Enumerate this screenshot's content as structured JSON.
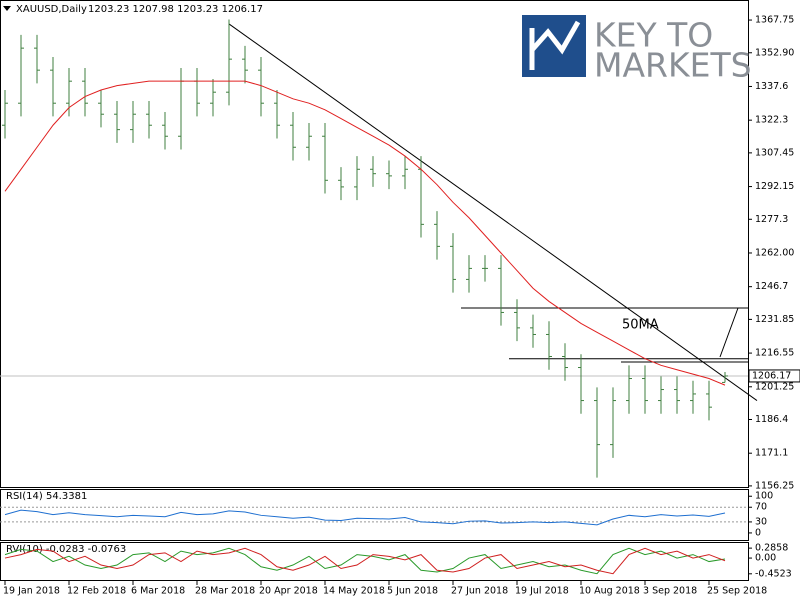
{
  "chart_data": {
    "type": "ohlc",
    "title": "XAUUSD,Daily",
    "header_values": "1203.23 1207.98 1203.23 1206.17",
    "logo_line1": "KEY TO",
    "logo_line2": "MARKETS",
    "annotation": "50MA",
    "color": "#3f7f3f",
    "categories": [
      "19 Jan 2018",
      null,
      null,
      null,
      "12 Feb 2018",
      null,
      null,
      null,
      "6 Mar 2018",
      null,
      null,
      null,
      "28 Mar 2018",
      null,
      null,
      null,
      "20 Apr 2018",
      null,
      null,
      null,
      "14 May 2018",
      null,
      null,
      null,
      "5 Jun 2018",
      null,
      null,
      null,
      "27 Jun 2018",
      null,
      null,
      null,
      "19 Jul 2018",
      null,
      null,
      null,
      "10 Aug 2018",
      null,
      null,
      null,
      "3 Sep 2018",
      null,
      null,
      null,
      "25 Sep 2018",
      null
    ],
    "open": [
      1320,
      1330,
      1355,
      1345,
      1330,
      1340,
      1330,
      1325,
      1318,
      1325,
      1320,
      1315,
      1340,
      1330,
      1335,
      1350,
      1345,
      1330,
      1320,
      1310,
      1315,
      1295,
      1292,
      1300,
      1298,
      1297,
      1300,
      1275,
      1265,
      1250,
      1255,
      1255,
      1235,
      1228,
      1225,
      1215,
      1210,
      1195,
      1175,
      1195,
      1205,
      1195,
      1200,
      1195,
      1198,
      1203.23
    ],
    "high": [
      1336,
      1361,
      1361,
      1351,
      1346,
      1346,
      1336,
      1331,
      1331,
      1331,
      1326,
      1346,
      1346,
      1341,
      1368,
      1356,
      1351,
      1336,
      1326,
      1321,
      1321,
      1301,
      1306,
      1306,
      1304,
      1306,
      1306,
      1281,
      1271,
      1261,
      1261,
      1261,
      1241,
      1234,
      1231,
      1221,
      1216,
      1201,
      1201,
      1211,
      1211,
      1206,
      1206,
      1204,
      1204,
      1207.98
    ],
    "low": [
      1314,
      1324,
      1339,
      1324,
      1324,
      1324,
      1319,
      1312,
      1312,
      1314,
      1309,
      1309,
      1324,
      1324,
      1329,
      1339,
      1324,
      1314,
      1304,
      1304,
      1289,
      1286,
      1286,
      1292,
      1291,
      1291,
      1269,
      1259,
      1244,
      1244,
      1249,
      1229,
      1222,
      1219,
      1209,
      1204,
      1189,
      1160,
      1169,
      1189,
      1189,
      1189,
      1189,
      1189,
      1186,
      1203.23
    ],
    "close": [
      1330,
      1355,
      1345,
      1330,
      1340,
      1330,
      1325,
      1318,
      1325,
      1320,
      1315,
      1340,
      1330,
      1335,
      1350,
      1345,
      1330,
      1320,
      1310,
      1315,
      1295,
      1292,
      1300,
      1298,
      1297,
      1300,
      1275,
      1265,
      1250,
      1255,
      1255,
      1235,
      1228,
      1225,
      1215,
      1210,
      1195,
      1175,
      1195,
      1205,
      1195,
      1200,
      1195,
      1198,
      1192,
      1206.17
    ],
    "ma": {
      "color": "#e02020",
      "values": [
        1290,
        1300,
        1310,
        1320,
        1328,
        1333,
        1336,
        1338,
        1339,
        1340,
        1340,
        1340,
        1340,
        1340,
        1340,
        1340,
        1338,
        1335,
        1332,
        1330,
        1327,
        1323,
        1319,
        1315,
        1311,
        1306,
        1300,
        1293,
        1285,
        1278,
        1270,
        1262,
        1254,
        1246,
        1240,
        1235,
        1230,
        1226,
        1222,
        1218,
        1214,
        1211,
        1209,
        1207,
        1205,
        1202
      ]
    },
    "last_price": 1206.17,
    "levels": [
      {
        "price": 1237,
        "from": 28.5
      },
      {
        "price": 1214,
        "from": 31.5
      },
      {
        "price": 1212.5,
        "from": 38.5
      }
    ],
    "trendline": {
      "from": [
        14,
        1366
      ],
      "to": [
        47,
        1195
      ]
    },
    "ylim": [
      1155.3,
      1376.4
    ],
    "yticks": [
      {
        "value": 1367.75,
        "label": "1367.75"
      },
      {
        "value": 1352.9,
        "label": "1352.90"
      },
      1337.6,
      1322.3,
      1307.45,
      1292.15,
      1277.3,
      {
        "value": 1262,
        "label": "1262.00"
      },
      1246.7,
      1231.85,
      1216.55,
      1201.25,
      1186.4,
      1171.1,
      1156.25
    ],
    "rsi": {
      "title": "RSI(14) 54.3381",
      "color": "#1e6fd0",
      "values": [
        50,
        62,
        58,
        50,
        55,
        50,
        47,
        44,
        48,
        46,
        44,
        56,
        50,
        52,
        60,
        57,
        48,
        44,
        40,
        43,
        35,
        34,
        40,
        39,
        38,
        42,
        30,
        28,
        25,
        32,
        33,
        27,
        28,
        30,
        28,
        30,
        26,
        22,
        38,
        48,
        44,
        50,
        46,
        49,
        45,
        54.34
      ],
      "ylim": [
        -22,
        117
      ],
      "yticks": [
        100,
        70,
        30,
        0
      ],
      "levels": [
        70,
        30
      ]
    },
    "rvi": {
      "title": "RVI(10) -0.0283 -0.0763",
      "series": [
        {
          "color": "#2a9a2a",
          "values": [
            0.1,
            0.25,
            0.2,
            -0.1,
            0.05,
            -0.2,
            -0.3,
            -0.2,
            0.1,
            0.15,
            -0.1,
            0.2,
            0.1,
            0.15,
            0.28,
            0.1,
            -0.25,
            -0.35,
            -0.2,
            0.05,
            -0.3,
            -0.2,
            0.1,
            0.05,
            -0.05,
            0.1,
            -0.35,
            -0.4,
            -0.3,
            0.0,
            0.1,
            -0.3,
            -0.2,
            -0.1,
            -0.25,
            -0.2,
            -0.35,
            -0.45,
            0.1,
            0.28,
            0.1,
            0.2,
            0.0,
            0.1,
            -0.1,
            -0.0283
          ]
        },
        {
          "color": "#d02020",
          "values": [
            0.0,
            0.1,
            0.25,
            0.2,
            -0.1,
            0.05,
            -0.2,
            -0.3,
            -0.2,
            0.1,
            0.15,
            -0.1,
            0.2,
            0.1,
            0.15,
            0.28,
            0.1,
            -0.25,
            -0.35,
            -0.2,
            0.05,
            -0.3,
            -0.2,
            0.1,
            0.05,
            -0.05,
            0.1,
            -0.35,
            -0.4,
            -0.3,
            0.0,
            0.1,
            -0.3,
            -0.2,
            -0.1,
            -0.25,
            -0.2,
            -0.35,
            -0.45,
            0.1,
            0.28,
            0.1,
            0.2,
            0.0,
            0.1,
            -0.0763
          ]
        }
      ],
      "ylim": [
        -0.659,
        0.433
      ],
      "yticks": [
        0.2858,
        {
          "value": 0,
          "label": "0.00"
        },
        -0.4523
      ]
    }
  }
}
